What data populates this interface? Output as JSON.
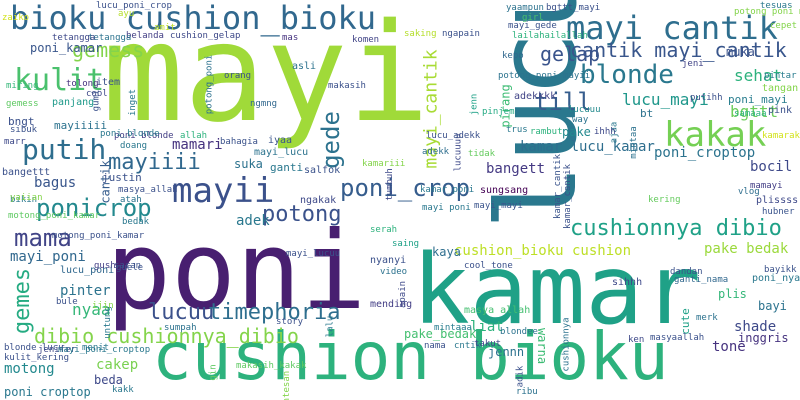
{
  "words": [
    {
      "text": "mayi",
      "color": "#a0da39"
    },
    {
      "text": "lucu",
      "color": "#2a788e"
    },
    {
      "text": "poni",
      "color": "#481f70"
    },
    {
      "text": "kamar",
      "color": "#1fa187"
    },
    {
      "text": "cushion bioku",
      "color": "#2db27d"
    },
    {
      "text": "bioku cushion_bioku",
      "color": "#31688e"
    },
    {
      "text": "mayi cantik",
      "color": "#2e6e8e"
    },
    {
      "text": "kakak",
      "color": "#75d054"
    },
    {
      "text": "mayii",
      "color": "#3b518b"
    },
    {
      "text": "poni_crop",
      "color": "#365d8d"
    },
    {
      "text": "blonde",
      "color": "#2a788e"
    },
    {
      "text": "putih",
      "color": "#2e6e8e"
    },
    {
      "text": "kulit",
      "color": "#4ac16d"
    },
    {
      "text": "till",
      "color": "#365d8d"
    },
    {
      "text": "mama",
      "color": "#414487"
    },
    {
      "text": "ponicrop",
      "color": "#23898e"
    },
    {
      "text": "potong",
      "color": "#3b528b"
    },
    {
      "text": "mayiiii",
      "color": "#31688e"
    },
    {
      "text": "cushionnya dibio",
      "color": "#1fa187"
    },
    {
      "text": "lucuu",
      "color": "#3b518b"
    },
    {
      "text": "timephoria",
      "color": "#2e6e8e"
    },
    {
      "text": "dibio cushionnya_dibio",
      "color": "#84d44b"
    },
    {
      "text": "gemes",
      "color": "#25ab82"
    },
    {
      "text": "gede",
      "color": "#2c728e"
    },
    {
      "text": "gemess",
      "color": "#84d44b"
    },
    {
      "text": "cantik mayi_cantik",
      "color": "#39568c"
    },
    {
      "text": "gelap",
      "color": "#3a548c"
    },
    {
      "text": "mayi_cantik",
      "color": "#a8db34"
    },
    {
      "text": "lucu_mayi",
      "color": "#1f978b"
    },
    {
      "text": "poni_croptop",
      "color": "#2c738e"
    },
    {
      "text": "sehat",
      "color": "#2db27d"
    },
    {
      "text": "bgttt",
      "color": "#6ccd5a"
    },
    {
      "text": "kamar lucu_kamar",
      "color": "#2e6e8e"
    },
    {
      "text": "mayi_poni",
      "color": "#31688e"
    },
    {
      "text": "pinter",
      "color": "#2c738e"
    },
    {
      "text": "nyaa",
      "color": "#35b779"
    },
    {
      "text": "pake bedak",
      "color": "#9bd93c"
    },
    {
      "text": "poni_kamar",
      "color": "#39568c"
    },
    {
      "text": "mamari",
      "color": "#46337f"
    },
    {
      "text": "mayi_lucu",
      "color": "#2c738e"
    },
    {
      "text": "bangett",
      "color": "#443983"
    },
    {
      "text": "bagus",
      "color": "#39568c"
    },
    {
      "text": "adek",
      "color": "#2a788e"
    },
    {
      "text": "cushion_bioku cushion",
      "color": "#bddf26"
    },
    {
      "text": "pake_bedak",
      "color": "#44bf70"
    },
    {
      "text": "liat",
      "color": "#2db27d"
    },
    {
      "text": "tone",
      "color": "#46337f"
    },
    {
      "text": "bocil",
      "color": "#3e4989"
    },
    {
      "text": "shade",
      "color": "#3e4989"
    },
    {
      "text": "inggris",
      "color": "#46337f"
    },
    {
      "text": "muka",
      "color": "#3b528b"
    },
    {
      "text": "cute",
      "color": "#1fa187"
    },
    {
      "text": "motong",
      "color": "#23898e"
    },
    {
      "text": "jennn",
      "color": "#2c728e"
    },
    {
      "text": "poni croptop",
      "color": "#2a788e"
    },
    {
      "text": "cakep",
      "color": "#7ad151"
    },
    {
      "text": "beda",
      "color": "#3e4989"
    },
    {
      "text": "mintaaa",
      "color": "#287c8e"
    },
    {
      "text": "plis",
      "color": "#35b779"
    },
    {
      "text": "ganti",
      "color": "#2a788e"
    },
    {
      "text": "suka",
      "color": "#2c728e"
    },
    {
      "text": "lucu_poni",
      "color": "#31688e"
    },
    {
      "text": "mayi_mayi",
      "color": "#3a548c"
    },
    {
      "text": "kaya",
      "color": "#2e6e8e"
    },
    {
      "text": "cantik",
      "color": "#365d8d"
    },
    {
      "text": "justin",
      "color": "#3b528b"
    },
    {
      "text": "bayi",
      "color": "#2c738e"
    },
    {
      "text": "poni_nyaa",
      "color": "#2a788e"
    },
    {
      "text": "sungsang",
      "color": "#440154"
    },
    {
      "text": "bangettt",
      "color": "#3b518b"
    },
    {
      "text": "adekkkk",
      "color": "#414487"
    },
    {
      "text": "poni_mayi",
      "color": "#287d8e"
    },
    {
      "text": "tangan",
      "color": "#84d44b"
    },
    {
      "text": "pintar",
      "color": "#287c8e"
    },
    {
      "text": "pink",
      "color": "#3b518b"
    },
    {
      "text": "plissss",
      "color": "#3e4989"
    },
    {
      "text": "ngakak",
      "color": "#3e4989"
    },
    {
      "text": "salfok",
      "color": "#3b528b"
    },
    {
      "text": "iyaa",
      "color": "#3a548c"
    },
    {
      "text": "mayiiiii",
      "color": "#2c728e"
    },
    {
      "text": "bngt",
      "color": "#3b518b"
    },
    {
      "text": "panjang",
      "color": "#1f9a8a"
    },
    {
      "text": "sibuk",
      "color": "#3b528b"
    },
    {
      "text": "bt",
      "color": "#2c728e"
    },
    {
      "text": "pake",
      "color": "#23898e"
    },
    {
      "text": "lucuuu",
      "color": "#238a8d"
    },
    {
      "text": "way",
      "color": "#2c738e"
    },
    {
      "text": "bikin",
      "color": "#2a788e"
    },
    {
      "text": "bule",
      "color": "#3b528b"
    },
    {
      "text": "gemess",
      "color": "#5ec962"
    },
    {
      "text": "poni blonde",
      "color": "#433e85"
    },
    {
      "text": "adekk",
      "color": "#2e6e8e"
    },
    {
      "text": "rambut",
      "color": "#2db27d"
    },
    {
      "text": "trus",
      "color": "#2a788e"
    },
    {
      "text": "warna",
      "color": "#3dbc74"
    },
    {
      "text": "pirang",
      "color": "#3dbc74"
    },
    {
      "text": "kering",
      "color": "#65cb5e"
    },
    {
      "text": "kamaraku",
      "color": "#d2e21b"
    },
    {
      "text": "mayi_gede",
      "color": "#3b528b"
    },
    {
      "text": "yaampun",
      "color": "#2c728e"
    },
    {
      "text": "lucu_poni_crop",
      "color": "#3b518b"
    },
    {
      "text": "girl",
      "color": "#4ac16d"
    },
    {
      "text": "kepo",
      "color": "#31688e"
    },
    {
      "text": "mas",
      "color": "#46337f"
    },
    {
      "text": "lailahailallah",
      "color": "#2db27d"
    },
    {
      "text": "potong_poni mayii",
      "color": "#2c738e"
    },
    {
      "text": "jenn",
      "color": "#1fa187"
    },
    {
      "text": "pinjem",
      "color": "#24aa83"
    },
    {
      "text": "ngapain",
      "color": "#3b518b"
    },
    {
      "text": "item",
      "color": "#3b528b"
    },
    {
      "text": "tolong",
      "color": "#46337f"
    },
    {
      "text": "miring",
      "color": "#35b779"
    },
    {
      "text": "asli",
      "color": "#2c728e"
    },
    {
      "text": "makasih",
      "color": "#3b518b"
    },
    {
      "text": "komen",
      "color": "#414487"
    },
    {
      "text": "cushion_gelap",
      "color": "#3e4989"
    },
    {
      "text": "belanda",
      "color": "#433e85"
    },
    {
      "text": "tetangga",
      "color": "#2c738e"
    },
    {
      "text": "ajaa",
      "color": "#2a788e"
    },
    {
      "text": "ihhh",
      "color": "#3e4989"
    },
    {
      "text": "mintaa",
      "color": "#2c728e"
    },
    {
      "text": "samaaa",
      "color": "#2db27d"
    },
    {
      "text": "vlog",
      "color": "#2e6e8e"
    },
    {
      "text": "mamayi",
      "color": "#433e85"
    },
    {
      "text": "hubner",
      "color": "#3a548c"
    },
    {
      "text": "ganti_nama",
      "color": "#31688e"
    },
    {
      "text": "dandan",
      "color": "#3b528b"
    },
    {
      "text": "kamar_cantik",
      "color": "#3a548c"
    },
    {
      "text": "sihhh",
      "color": "#3e4989"
    },
    {
      "text": "masya allah",
      "color": "#44bf70"
    },
    {
      "text": "mending",
      "color": "#433e85"
    },
    {
      "text": "video",
      "color": "#2c728e"
    },
    {
      "text": "cool_tone",
      "color": "#3b518b"
    },
    {
      "text": "mayi_lucuu",
      "color": "#3b518b"
    },
    {
      "text": "nyanyi",
      "color": "#3b518b"
    },
    {
      "text": "saing",
      "color": "#1fa187"
    },
    {
      "text": "serah",
      "color": "#2db27d"
    },
    {
      "text": "kamariii",
      "color": "#84d44b"
    },
    {
      "text": "tumbuh",
      "color": "#3e4989"
    },
    {
      "text": "tidak",
      "color": "#65cb5e"
    },
    {
      "text": "lucuuuu",
      "color": "#3e4989"
    },
    {
      "text": "bahagia",
      "color": "#3b528b"
    },
    {
      "text": "allah",
      "color": "#2db27d"
    },
    {
      "text": "doang",
      "color": "#2a788e"
    },
    {
      "text": "masya_allah",
      "color": "#3b518b"
    },
    {
      "text": "atah",
      "color": "#2c728e"
    },
    {
      "text": "bedak",
      "color": "#2a788e"
    },
    {
      "text": "motong_poni_kamar",
      "color": "#5ec962"
    },
    {
      "text": "gush",
      "color": "#433e85"
    },
    {
      "text": "cool",
      "color": "#3e4989"
    },
    {
      "text": "gumi",
      "color": "#3b528b"
    },
    {
      "text": "inget",
      "color": "#2a788e"
    },
    {
      "text": "orang",
      "color": "#3b518b"
    },
    {
      "text": "ngmng",
      "color": "#31688e"
    },
    {
      "text": "potong_poni",
      "color": "#2c728e"
    },
    {
      "text": "lucu_adekk",
      "color": "#3b518b"
    },
    {
      "text": "putihh",
      "color": "#3b518b"
    },
    {
      "text": "jeni",
      "color": "#414487"
    },
    {
      "text": "apain",
      "color": "#3e4989"
    },
    {
      "text": "story",
      "color": "#3b518b"
    },
    {
      "text": "sumpah",
      "color": "#2c728e"
    },
    {
      "text": "lalu",
      "color": "#2a788e"
    },
    {
      "text": "guele",
      "color": "#3b528b"
    },
    {
      "text": "cushionnya",
      "color": "#2c728e"
    },
    {
      "text": "kamar_cantik",
      "color": "#3b518b"
    },
    {
      "text": "poni_blonde",
      "color": "#2a788e"
    },
    {
      "text": "gin",
      "color": "#5ec962"
    },
    {
      "text": "untung",
      "color": "#2a788e"
    },
    {
      "text": "ijin",
      "color": "#84d44b"
    },
    {
      "text": "jenifer",
      "color": "#3e4989"
    },
    {
      "text": "menit",
      "color": "#2a788e"
    },
    {
      "text": "blonde lucu",
      "color": "#3b518b"
    },
    {
      "text": "mayi_poni_croptop",
      "color": "#2a788e"
    },
    {
      "text": "kulit_kering",
      "color": "#3b518b"
    },
    {
      "text": "makasih_kakak",
      "color": "#5ec962"
    },
    {
      "text": "nama",
      "color": "#3b518b"
    },
    {
      "text": "cntik",
      "color": "#2a788e"
    },
    {
      "text": "adik",
      "color": "#3b518b"
    },
    {
      "text": "takut",
      "color": "#3e4989"
    },
    {
      "text": "blondee",
      "color": "#2c738e"
    },
    {
      "text": "ken",
      "color": "#3e4989"
    },
    {
      "text": "ribu",
      "color": "#2c728e"
    },
    {
      "text": "masyaallah",
      "color": "#3b518b"
    },
    {
      "text": "pantesan",
      "color": "#84d44b"
    },
    {
      "text": "merk",
      "color": "#2c728e"
    },
    {
      "text": "kakk",
      "color": "#2a788e"
    },
    {
      "text": "saran",
      "color": "#3b518b"
    },
    {
      "text": "zaiko",
      "color": "#d2e21b"
    },
    {
      "text": "ayu",
      "color": "#b5de2b"
    },
    {
      "text": "amit",
      "color": "#bddf26"
    },
    {
      "text": "tetangga",
      "color": "#3e4989"
    },
    {
      "text": "motong_poni_kamar",
      "color": "#3b518b"
    },
    {
      "text": "cepet",
      "color": "#84d44b"
    },
    {
      "text": "tesuas",
      "color": "#2a788e"
    },
    {
      "text": "bayikk",
      "color": "#3b528b"
    },
    {
      "text": "bgttt_mayi",
      "color": "#3b518b"
    },
    {
      "text": "saking",
      "color": "#b5de2b"
    },
    {
      "text": "yaiian",
      "color": "#84d44b"
    },
    {
      "text": "kamar_poni",
      "color": "#2a788e"
    },
    {
      "text": "mayi poni",
      "color": "#2a788e"
    },
    {
      "text": "potong poni mayi",
      "color": "#84d44b"
    },
    {
      "text": "marr",
      "color": "#3e4989"
    }
  ]
}
